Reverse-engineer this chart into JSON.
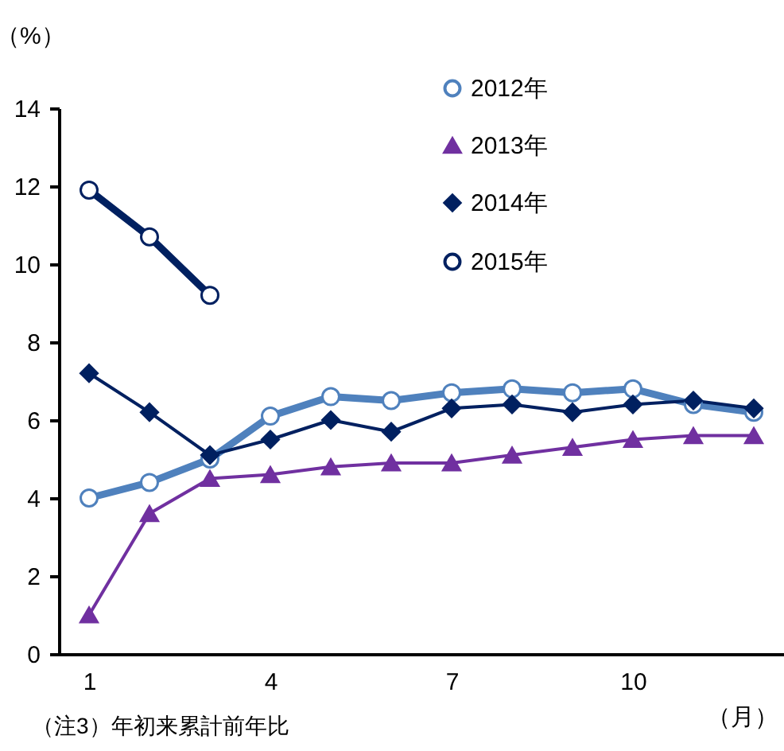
{
  "chart_data": {
    "type": "line",
    "ylabel": "（%）",
    "xlabel": "（月）",
    "annotations": [
      "（注3）年初来累計前年比"
    ],
    "categories": [
      "1",
      null,
      null,
      "4",
      null,
      null,
      "7",
      null,
      null,
      "10",
      null,
      null
    ],
    "series": [
      {
        "name": "2012年",
        "color": "#4f81bd",
        "marker": "circle",
        "values": [
          4.0,
          4.4,
          5.0,
          6.1,
          6.6,
          6.5,
          6.7,
          6.8,
          6.7,
          6.8,
          6.4,
          6.2
        ]
      },
      {
        "name": "2013年",
        "color": "#7030a0",
        "marker": "triangle",
        "values": [
          1.0,
          3.6,
          4.5,
          4.6,
          4.8,
          4.9,
          4.9,
          5.1,
          5.3,
          5.5,
          5.6,
          5.6
        ]
      },
      {
        "name": "2014年",
        "color": "#002060",
        "marker": "diamond",
        "values": [
          7.2,
          6.2,
          5.1,
          5.5,
          6.0,
          5.7,
          6.3,
          6.4,
          6.2,
          6.4,
          6.5,
          6.3
        ]
      },
      {
        "name": "2015年",
        "color": "#002060",
        "marker": "circle",
        "values": [
          11.9,
          10.7,
          9.2,
          null,
          null,
          null,
          null,
          null,
          null,
          null,
          null,
          null
        ]
      }
    ],
    "ylim": [
      0,
      14
    ],
    "yticks": [
      0,
      2,
      4,
      6,
      8,
      10,
      12,
      14
    ],
    "grid": false,
    "legend": "top right"
  }
}
